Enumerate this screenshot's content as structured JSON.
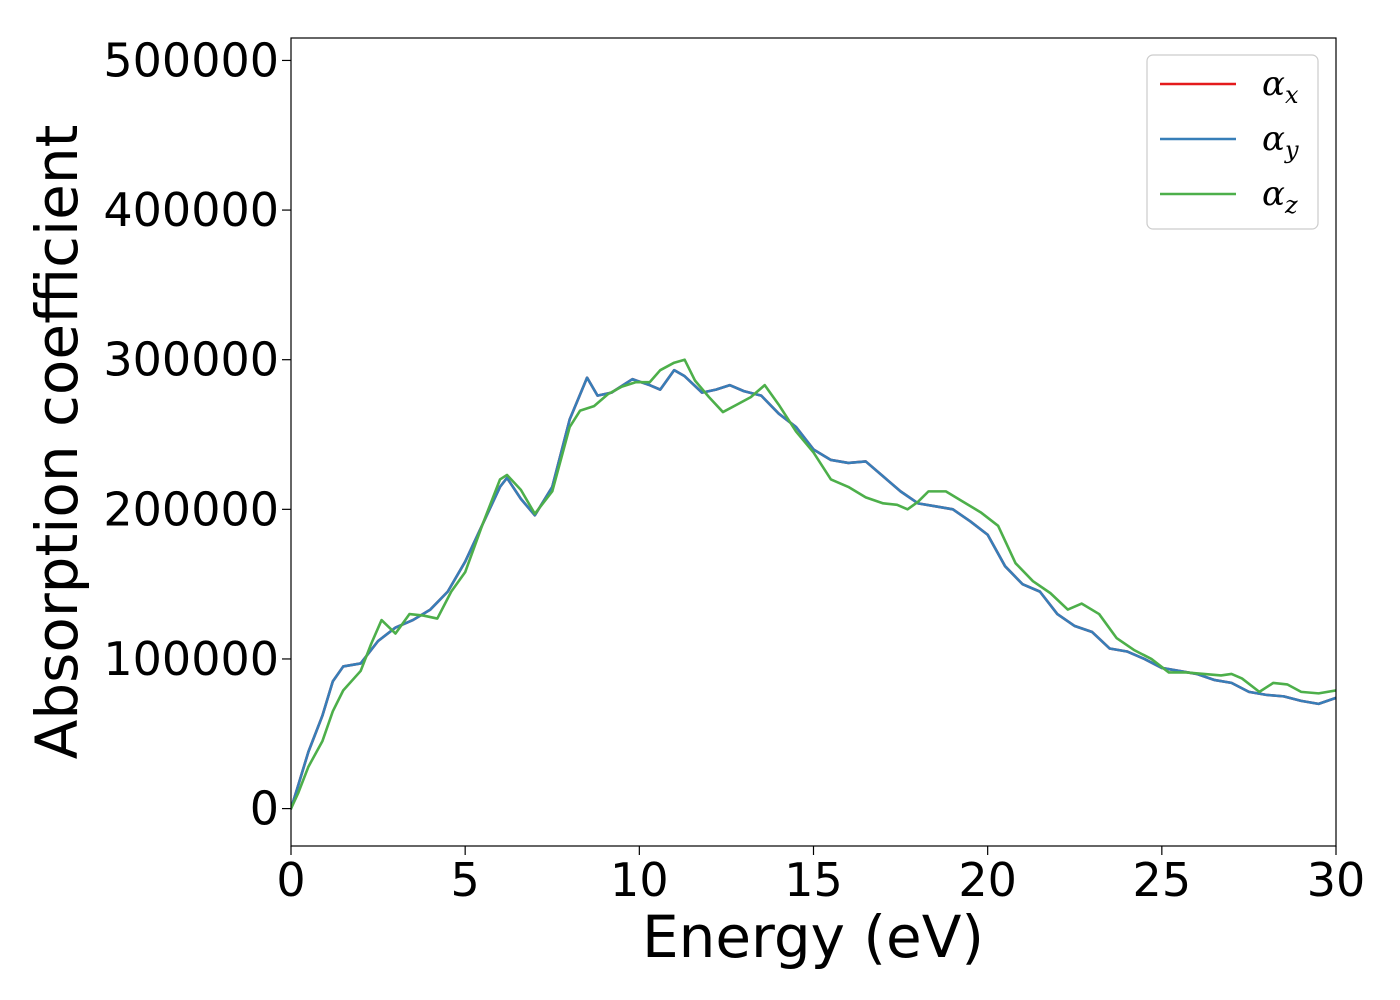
{
  "chart_data": {
    "type": "line",
    "xlabel": "Energy (eV)",
    "ylabel": "Absorption coefficient",
    "xlim": [
      0,
      30
    ],
    "ylim": [
      -25000,
      515000
    ],
    "x_ticks": [
      "0",
      "5",
      "10",
      "15",
      "20",
      "25",
      "30"
    ],
    "y_ticks": [
      "0",
      "100000",
      "200000",
      "300000",
      "400000",
      "500000"
    ],
    "legend_position": "top-right",
    "grid": false,
    "series": [
      {
        "name": "α_x",
        "symbol": "α",
        "subscript": "x",
        "color": "#e41a1c",
        "x": [
          0,
          0.2,
          0.5,
          0.9,
          1.2,
          1.5,
          2.0,
          2.5,
          3.0,
          3.5,
          4.0,
          4.5,
          5.0,
          5.5,
          6.0,
          6.2,
          6.6,
          7.0,
          7.5,
          8.0,
          8.5,
          8.8,
          9.2,
          9.8,
          10.3,
          10.6,
          11.0,
          11.3,
          11.8,
          12.2,
          12.6,
          13.0,
          13.5,
          14.0,
          14.5,
          15.0,
          15.5,
          16.0,
          16.5,
          17.0,
          17.5,
          18.0,
          18.5,
          19.0,
          19.5,
          20.0,
          20.5,
          21.0,
          21.5,
          22.0,
          22.5,
          23.0,
          23.5,
          24.0,
          24.5,
          25.0,
          25.5,
          26.0,
          26.5,
          27.0,
          27.5,
          28.0,
          28.5,
          29.0,
          29.5,
          30.0
        ],
        "values": [
          0,
          15000,
          38000,
          62000,
          85000,
          95000,
          97000,
          112000,
          121000,
          126000,
          133000,
          145000,
          165000,
          190000,
          215000,
          221000,
          207000,
          196000,
          215000,
          260000,
          288000,
          276000,
          278000,
          287000,
          283000,
          280000,
          293000,
          289000,
          278000,
          280000,
          283000,
          279000,
          276000,
          264000,
          255000,
          240000,
          233000,
          231000,
          232000,
          222000,
          212000,
          204000,
          202000,
          200000,
          192000,
          183000,
          162000,
          150000,
          145000,
          130000,
          122000,
          118000,
          107000,
          105000,
          100000,
          94000,
          92000,
          90000,
          86000,
          84000,
          78000,
          76000,
          75000,
          72000,
          70000,
          74000
        ]
      },
      {
        "name": "α_y",
        "symbol": "α",
        "subscript": "y",
        "color": "#377eb8",
        "x": [
          0,
          0.2,
          0.5,
          0.9,
          1.2,
          1.5,
          2.0,
          2.5,
          3.0,
          3.5,
          4.0,
          4.5,
          5.0,
          5.5,
          6.0,
          6.2,
          6.6,
          7.0,
          7.5,
          8.0,
          8.5,
          8.8,
          9.2,
          9.8,
          10.3,
          10.6,
          11.0,
          11.3,
          11.8,
          12.2,
          12.6,
          13.0,
          13.5,
          14.0,
          14.5,
          15.0,
          15.5,
          16.0,
          16.5,
          17.0,
          17.5,
          18.0,
          18.5,
          19.0,
          19.5,
          20.0,
          20.5,
          21.0,
          21.5,
          22.0,
          22.5,
          23.0,
          23.5,
          24.0,
          24.5,
          25.0,
          25.5,
          26.0,
          26.5,
          27.0,
          27.5,
          28.0,
          28.5,
          29.0,
          29.5,
          30.0
        ],
        "values": [
          0,
          15000,
          38000,
          62000,
          85000,
          95000,
          97000,
          112000,
          121000,
          126000,
          133000,
          145000,
          165000,
          190000,
          215000,
          221000,
          207000,
          196000,
          215000,
          260000,
          288000,
          276000,
          278000,
          287000,
          283000,
          280000,
          293000,
          289000,
          278000,
          280000,
          283000,
          279000,
          276000,
          264000,
          255000,
          240000,
          233000,
          231000,
          232000,
          222000,
          212000,
          204000,
          202000,
          200000,
          192000,
          183000,
          162000,
          150000,
          145000,
          130000,
          122000,
          118000,
          107000,
          105000,
          100000,
          94000,
          92000,
          90000,
          86000,
          84000,
          78000,
          76000,
          75000,
          72000,
          70000,
          74000
        ]
      },
      {
        "name": "α_z",
        "symbol": "α",
        "subscript": "z",
        "color": "#4daf4a",
        "x": [
          0,
          0.2,
          0.5,
          0.9,
          1.2,
          1.5,
          2.0,
          2.3,
          2.6,
          3.0,
          3.4,
          3.8,
          4.2,
          4.6,
          5.0,
          5.5,
          6.0,
          6.2,
          6.6,
          7.0,
          7.5,
          8.0,
          8.3,
          8.7,
          9.1,
          9.5,
          9.9,
          10.3,
          10.6,
          11.0,
          11.3,
          11.6,
          12.0,
          12.4,
          12.8,
          13.2,
          13.6,
          14.0,
          14.5,
          15.0,
          15.5,
          16.0,
          16.5,
          17.0,
          17.4,
          17.7,
          18.0,
          18.3,
          18.8,
          19.3,
          19.8,
          20.3,
          20.8,
          21.3,
          21.8,
          22.3,
          22.7,
          23.2,
          23.7,
          24.2,
          24.7,
          25.2,
          25.7,
          26.2,
          26.7,
          27.0,
          27.3,
          27.8,
          28.2,
          28.6,
          29.0,
          29.5,
          30.0
        ],
        "values": [
          0,
          10000,
          28000,
          45000,
          65000,
          79000,
          92000,
          110000,
          126000,
          117000,
          130000,
          129000,
          127000,
          145000,
          158000,
          190000,
          220000,
          223000,
          213000,
          197000,
          212000,
          255000,
          266000,
          269000,
          277000,
          282000,
          285000,
          285000,
          293000,
          298000,
          300000,
          286000,
          275000,
          265000,
          270000,
          275000,
          283000,
          270000,
          252000,
          238000,
          220000,
          215000,
          208000,
          204000,
          203000,
          200000,
          205000,
          212000,
          212000,
          205000,
          198000,
          189000,
          164000,
          152000,
          144000,
          133000,
          137000,
          130000,
          114000,
          106000,
          100000,
          91000,
          91000,
          90000,
          89000,
          90000,
          87000,
          78000,
          84000,
          83000,
          78000,
          77000,
          79000
        ]
      }
    ]
  }
}
